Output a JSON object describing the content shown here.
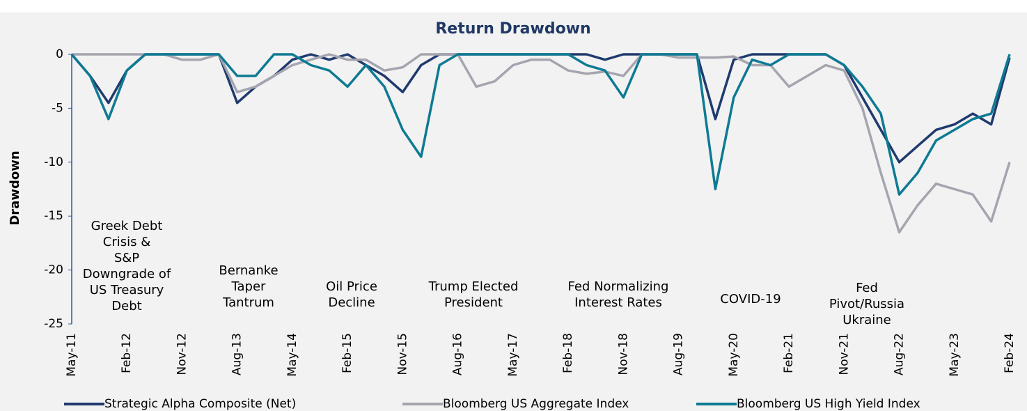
{
  "chart_data": {
    "type": "line",
    "title": "Return Drawdown",
    "y_label": "Drawdown",
    "categories": [
      "May-11",
      null,
      null,
      "Feb-12",
      null,
      null,
      "Nov-12",
      null,
      null,
      "Aug-13",
      null,
      null,
      "May-14",
      null,
      null,
      "Feb-15",
      null,
      null,
      "Nov-15",
      null,
      null,
      "Aug-16",
      null,
      null,
      "May-17",
      null,
      null,
      "Feb-18",
      null,
      null,
      "Nov-18",
      null,
      null,
      "Aug-19",
      null,
      null,
      "May-20",
      null,
      null,
      "Feb-21",
      null,
      null,
      "Nov-21",
      null,
      null,
      "Aug-22",
      null,
      null,
      "May-23",
      null,
      null,
      "Feb-24"
    ],
    "series": [
      {
        "name": "Strategic Alpha Composite (Net)",
        "color": "#1f3a6e",
        "values": [
          0,
          -2,
          -4.5,
          -1.5,
          0,
          0,
          0,
          0,
          0,
          -4.5,
          -3,
          -2,
          -0.5,
          0,
          -0.5,
          0,
          -1,
          -2,
          -3.5,
          -1,
          0,
          0,
          0,
          0,
          0,
          0,
          0,
          0,
          0,
          -0.5,
          0,
          0,
          0,
          0,
          0,
          -6,
          -0.5,
          0,
          0,
          0,
          0,
          0,
          -1,
          -4,
          -7,
          -10,
          -8.5,
          -7,
          -6.5,
          -5.5,
          -6.5,
          -0.3
        ]
      },
      {
        "name": "Bloomberg US Aggregate Index",
        "color": "#a5a5b0",
        "values": [
          0,
          0,
          0,
          0,
          0,
          0,
          -0.5,
          -0.5,
          0,
          -3.5,
          -3,
          -2,
          -1,
          -0.5,
          0,
          -0.5,
          -0.5,
          -1.5,
          -1.2,
          0,
          0,
          0,
          -3,
          -2.5,
          -1,
          -0.5,
          -0.5,
          -1.5,
          -1.8,
          -1.6,
          -2,
          0,
          0,
          -0.3,
          -0.3,
          -0.3,
          -0.2,
          -1,
          -1,
          -3,
          -2,
          -1,
          -1.5,
          -5,
          -11,
          -16.5,
          -14,
          -12,
          -12.5,
          -13,
          -15.5,
          -10
        ]
      },
      {
        "name": "Bloomberg US High Yield Index",
        "color": "#0e7a93",
        "values": [
          0,
          -2,
          -6,
          -1.5,
          0,
          0,
          0,
          0,
          0,
          -2,
          -2,
          0,
          0,
          -1,
          -1.5,
          -3,
          -1,
          -3,
          -7,
          -9.5,
          -1,
          0,
          0,
          0,
          0,
          0,
          0,
          0,
          -1,
          -1.5,
          -4,
          0,
          0,
          0,
          0,
          -12.5,
          -4,
          -0.5,
          -1,
          0,
          0,
          0,
          -1,
          -3,
          -5.5,
          -13,
          -11,
          -8,
          -7,
          -6,
          -5.5,
          0
        ]
      }
    ],
    "ylim": [
      -25,
      0
    ],
    "yticks": [
      -25,
      -20,
      -15,
      -10,
      -5,
      0
    ],
    "annotations": [
      [
        "Greek Debt",
        "Crisis &",
        "S&P",
        "Downgrade of",
        "US Treasury",
        "Debt"
      ],
      [
        "Bernanke",
        "Taper",
        "Tantrum"
      ],
      [
        "Oil Price",
        "Decline"
      ],
      [
        "Trump Elected",
        "President"
      ],
      [
        "Fed Normalizing",
        "Interest Rates"
      ],
      [
        "COVID-19"
      ],
      [
        "Fed",
        "Pivot/Russia",
        "Ukraine"
      ]
    ]
  }
}
